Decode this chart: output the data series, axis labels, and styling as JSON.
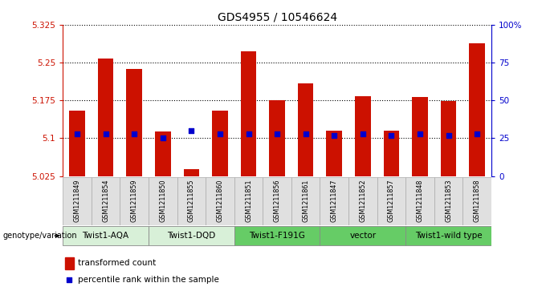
{
  "title": "GDS4955 / 10546624",
  "samples": [
    "GSM1211849",
    "GSM1211854",
    "GSM1211859",
    "GSM1211850",
    "GSM1211855",
    "GSM1211860",
    "GSM1211851",
    "GSM1211856",
    "GSM1211861",
    "GSM1211847",
    "GSM1211852",
    "GSM1211857",
    "GSM1211848",
    "GSM1211853",
    "GSM1211858"
  ],
  "bar_values": [
    5.155,
    5.258,
    5.237,
    5.113,
    5.038,
    5.155,
    5.272,
    5.175,
    5.208,
    5.115,
    5.183,
    5.115,
    5.182,
    5.173,
    5.288
  ],
  "percentile_values": [
    28,
    28,
    28,
    25,
    30,
    28,
    28,
    28,
    28,
    27,
    28,
    27,
    28,
    27,
    28
  ],
  "ymin": 5.025,
  "ymax": 5.325,
  "yticks": [
    5.025,
    5.1,
    5.175,
    5.25,
    5.325
  ],
  "ytick_labels": [
    "5.025",
    "5.1",
    "5.175",
    "5.25",
    "5.325"
  ],
  "right_yticks": [
    0,
    25,
    50,
    75,
    100
  ],
  "right_ytick_labels": [
    "0",
    "25",
    "50",
    "75",
    "100%"
  ],
  "bar_color": "#cc1100",
  "marker_color": "#0000cc",
  "groups": [
    {
      "label": "Twist1-AQA",
      "start": 0,
      "end": 3,
      "color": "#d8f0d8"
    },
    {
      "label": "Twist1-DQD",
      "start": 3,
      "end": 6,
      "color": "#d8f0d8"
    },
    {
      "label": "Twist1-F191G",
      "start": 6,
      "end": 9,
      "color": "#66cc66"
    },
    {
      "label": "vector",
      "start": 9,
      "end": 12,
      "color": "#66cc66"
    },
    {
      "label": "Twist1-wild type",
      "start": 12,
      "end": 15,
      "color": "#66cc66"
    }
  ],
  "legend_bar_label": "transformed count",
  "legend_marker_label": "percentile rank within the sample",
  "bar_width": 0.55,
  "title_fontsize": 10,
  "tick_fontsize": 7.5,
  "sample_fontsize": 5.8,
  "group_fontsize": 7.5,
  "legend_fontsize": 7.5
}
